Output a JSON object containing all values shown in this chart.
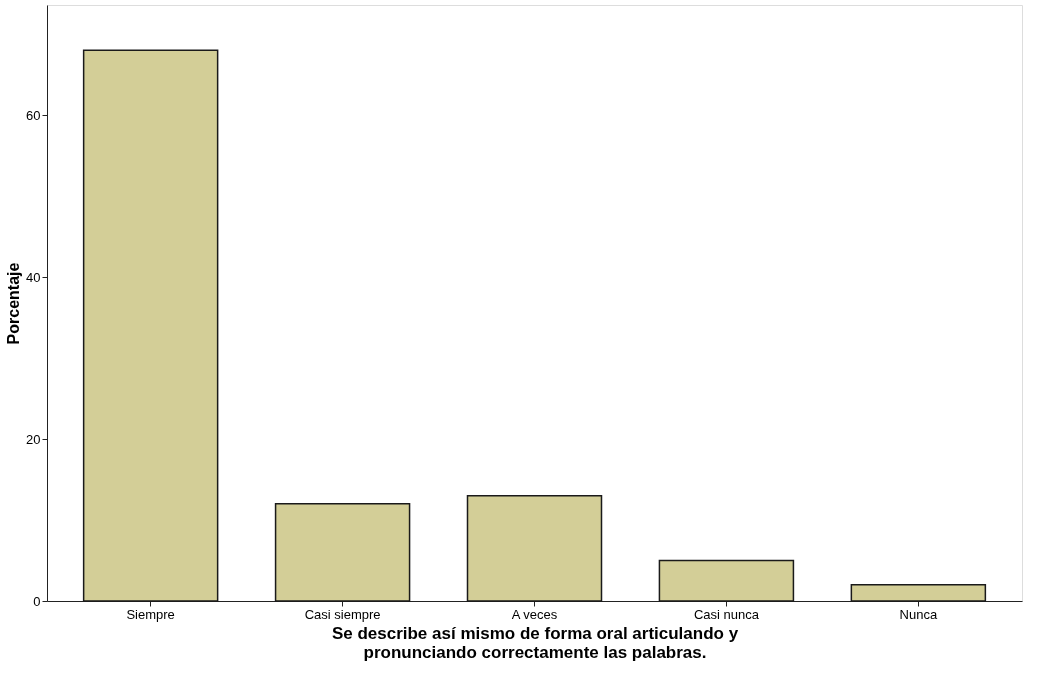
{
  "chart_data": {
    "type": "bar",
    "xlabel": "Se describe así mismo de forma oral articulando y pronunciando correctamente las palabras.",
    "ylabel": "Porcentaje",
    "categories": [
      "Siempre",
      "Casi siempre",
      "A veces",
      "Casi nunca",
      "Nunca"
    ],
    "values": [
      68,
      12,
      13,
      5,
      2
    ],
    "color": "#d3ce97",
    "ylim": [
      0,
      73.6
    ],
    "yticks": [
      0,
      20,
      40,
      60
    ],
    "grid": false
  }
}
